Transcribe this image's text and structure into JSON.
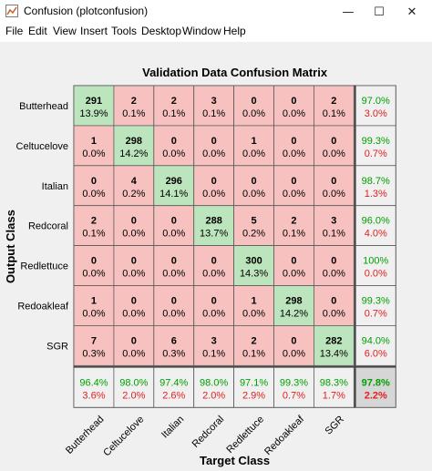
{
  "window": {
    "title": "Confusion (plotconfusion)",
    "minimize_glyph": "—",
    "maximize_glyph": "☐",
    "close_glyph": "✕"
  },
  "menu": [
    "File",
    "Edit",
    "View",
    "Insert",
    "Tools",
    "Desktop",
    "Window",
    "Help"
  ],
  "colors": {
    "correct": "#bde5bd",
    "incorrect": "#f6c1bf",
    "summary": "#f0f0f0",
    "total": "#d6d6d6",
    "green_text": "#00a000",
    "red_text": "#e02020"
  },
  "chart_data": {
    "type": "heatmap",
    "title": "Validation Data Confusion Matrix",
    "xlabel": "Target Class",
    "ylabel": "Output Class",
    "classes": [
      "Butterhead",
      "Celtucelove",
      "Italian",
      "Redcoral",
      "Redlettuce",
      "Redoakleaf",
      "SGR"
    ],
    "counts": [
      [
        291,
        2,
        2,
        3,
        0,
        0,
        2
      ],
      [
        1,
        298,
        0,
        0,
        1,
        0,
        0
      ],
      [
        0,
        4,
        296,
        0,
        0,
        0,
        0
      ],
      [
        2,
        0,
        0,
        288,
        5,
        2,
        3
      ],
      [
        0,
        0,
        0,
        0,
        300,
        0,
        0
      ],
      [
        1,
        0,
        0,
        0,
        1,
        298,
        0
      ],
      [
        7,
        0,
        6,
        3,
        2,
        0,
        282
      ]
    ],
    "percents": [
      [
        "13.9%",
        "0.1%",
        "0.1%",
        "0.1%",
        "0.0%",
        "0.0%",
        "0.1%"
      ],
      [
        "0.0%",
        "14.2%",
        "0.0%",
        "0.0%",
        "0.0%",
        "0.0%",
        "0.0%"
      ],
      [
        "0.0%",
        "0.2%",
        "14.1%",
        "0.0%",
        "0.0%",
        "0.0%",
        "0.0%"
      ],
      [
        "0.1%",
        "0.0%",
        "0.0%",
        "13.7%",
        "0.2%",
        "0.1%",
        "0.1%"
      ],
      [
        "0.0%",
        "0.0%",
        "0.0%",
        "0.0%",
        "14.3%",
        "0.0%",
        "0.0%"
      ],
      [
        "0.0%",
        "0.0%",
        "0.0%",
        "0.0%",
        "0.0%",
        "14.2%",
        "0.0%"
      ],
      [
        "0.3%",
        "0.0%",
        "0.3%",
        "0.1%",
        "0.1%",
        "0.0%",
        "13.4%"
      ]
    ],
    "row_summary": [
      [
        "97.0%",
        "3.0%"
      ],
      [
        "99.3%",
        "0.7%"
      ],
      [
        "98.7%",
        "1.3%"
      ],
      [
        "96.0%",
        "4.0%"
      ],
      [
        "100%",
        "0.0%"
      ],
      [
        "99.3%",
        "0.7%"
      ],
      [
        "94.0%",
        "6.0%"
      ]
    ],
    "col_summary": [
      [
        "96.4%",
        "3.6%"
      ],
      [
        "98.0%",
        "2.0%"
      ],
      [
        "97.4%",
        "2.6%"
      ],
      [
        "98.0%",
        "2.0%"
      ],
      [
        "97.1%",
        "2.9%"
      ],
      [
        "99.3%",
        "0.7%"
      ],
      [
        "98.3%",
        "1.7%"
      ]
    ],
    "overall": [
      "97.8%",
      "2.2%"
    ]
  }
}
